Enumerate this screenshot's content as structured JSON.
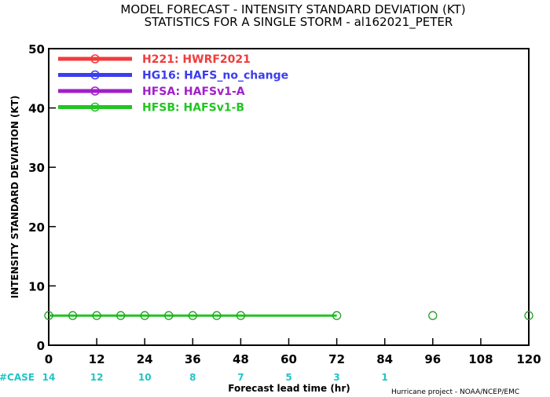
{
  "chart_data": {
    "type": "line",
    "title": "MODEL FORECAST - INTENSITY STANDARD DEVIATION (KT)",
    "subtitle": "STATISTICS FOR A SINGLE STORM - al162021_PETER",
    "xlabel": "Forecast lead time (hr)",
    "ylabel": "INTENSITY STANDARD DEVIATION (KT)",
    "xlim": [
      0,
      120
    ],
    "ylim": [
      0,
      50
    ],
    "xticks": [
      0,
      12,
      24,
      36,
      48,
      60,
      72,
      84,
      96,
      108,
      120
    ],
    "yticks": [
      0,
      10,
      20,
      30,
      40,
      50
    ],
    "grid": false,
    "legend_position": "top-left",
    "series": [
      {
        "name": "H221: HWRF2021",
        "color": "#f03c3c",
        "x": [],
        "y": []
      },
      {
        "name": "HG16: HAFS_no_change",
        "color": "#3c3cf0",
        "x": [],
        "y": []
      },
      {
        "name": "HFSA: HAFSv1-A",
        "color": "#a020c8",
        "x": [],
        "y": []
      },
      {
        "name": "HFSB: HAFSv1-B",
        "color": "#22c522",
        "x": [
          0,
          6,
          12,
          18,
          24,
          30,
          36,
          42,
          48,
          72
        ],
        "y": [
          5,
          5,
          5,
          5,
          5,
          5,
          5,
          5,
          5,
          5
        ]
      }
    ],
    "extra_markers": {
      "color": "#22a022",
      "x": [
        96,
        120
      ],
      "y": [
        5,
        5
      ]
    },
    "cases": {
      "label": "#CASE",
      "x": [
        0,
        12,
        24,
        36,
        48,
        60,
        72,
        84
      ],
      "values": [
        14,
        12,
        10,
        8,
        7,
        5,
        3,
        1
      ]
    },
    "credit": "Hurricane project - NOAA/NCEP/EMC"
  }
}
